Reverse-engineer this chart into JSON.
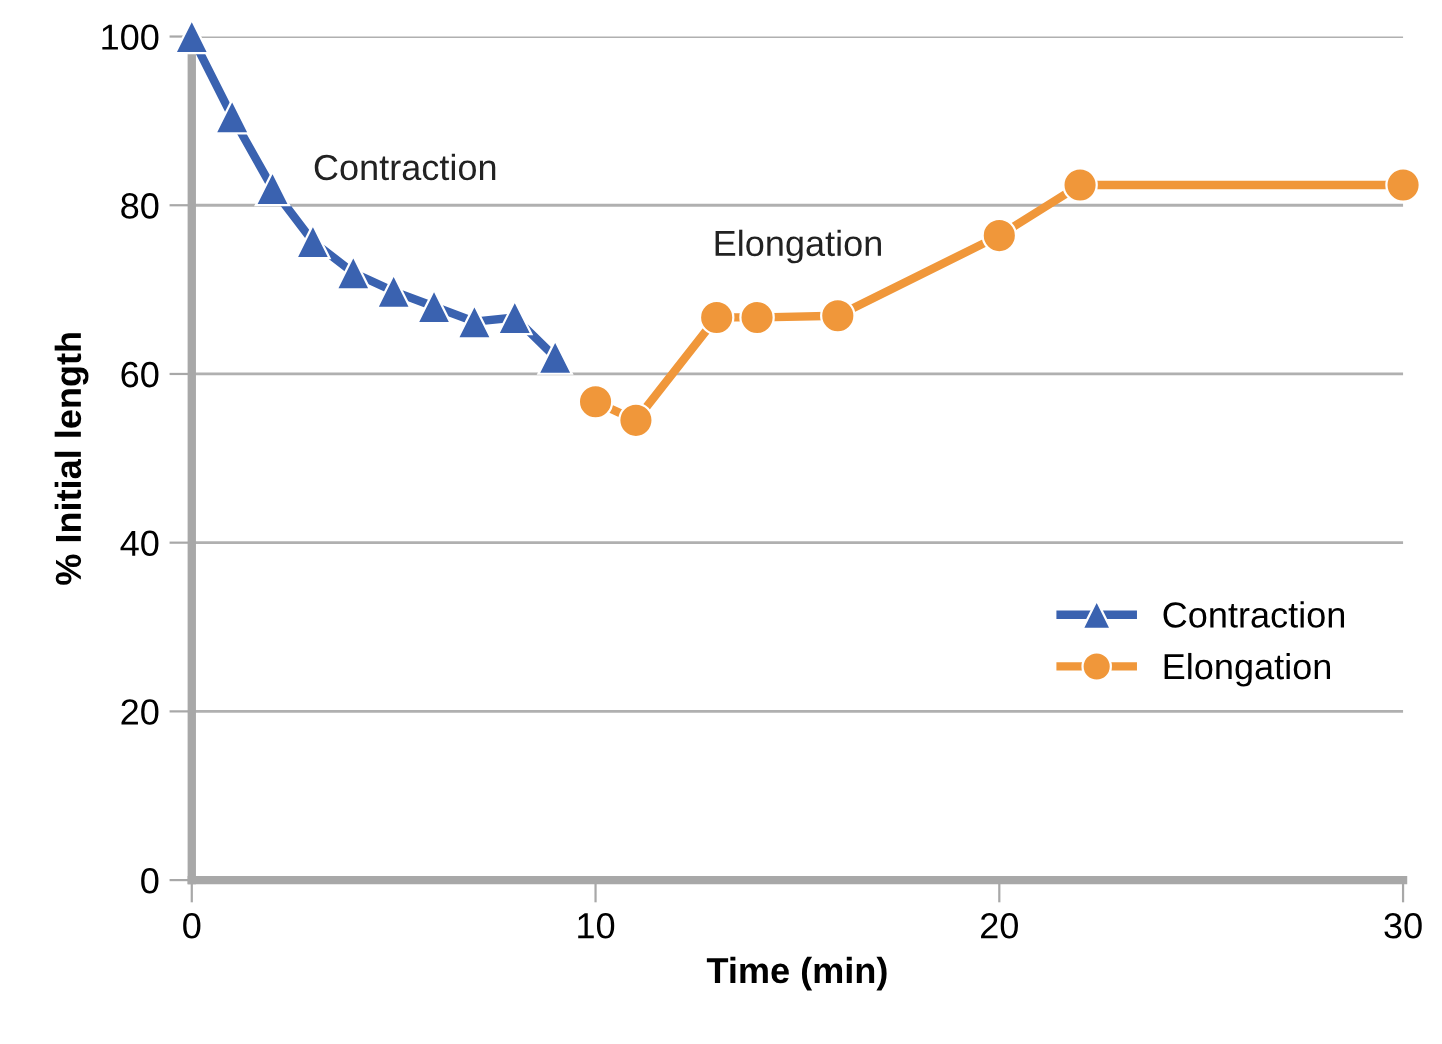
{
  "chart_data": {
    "type": "line",
    "xlabel": "Time (min)",
    "ylabel": "% Initial length",
    "xlim": [
      0,
      30
    ],
    "ylim": [
      0,
      100
    ],
    "xticks": [
      0,
      10,
      20,
      30
    ],
    "yticks": [
      0,
      20,
      40,
      60,
      80,
      100
    ],
    "grid": "y",
    "legend": "right",
    "annotations": [
      "Contraction",
      "Elongation"
    ],
    "series": [
      {
        "name": "Contraction",
        "color": "#3a62b0",
        "marker": "triangle",
        "x": [
          0,
          1,
          2,
          3,
          4,
          5,
          6,
          7,
          8,
          9
        ],
        "values": [
          100,
          90.5,
          82,
          75.7,
          72,
          69.8,
          68,
          66.2,
          66.7,
          62
        ]
      },
      {
        "name": "Elongation",
        "color": "#f0973a",
        "marker": "circle",
        "x": [
          10,
          11,
          13,
          14,
          16,
          20,
          22,
          30
        ],
        "values": [
          56.7,
          54.5,
          66.7,
          66.7,
          66.9,
          76.4,
          82.4,
          82.4
        ]
      }
    ]
  }
}
